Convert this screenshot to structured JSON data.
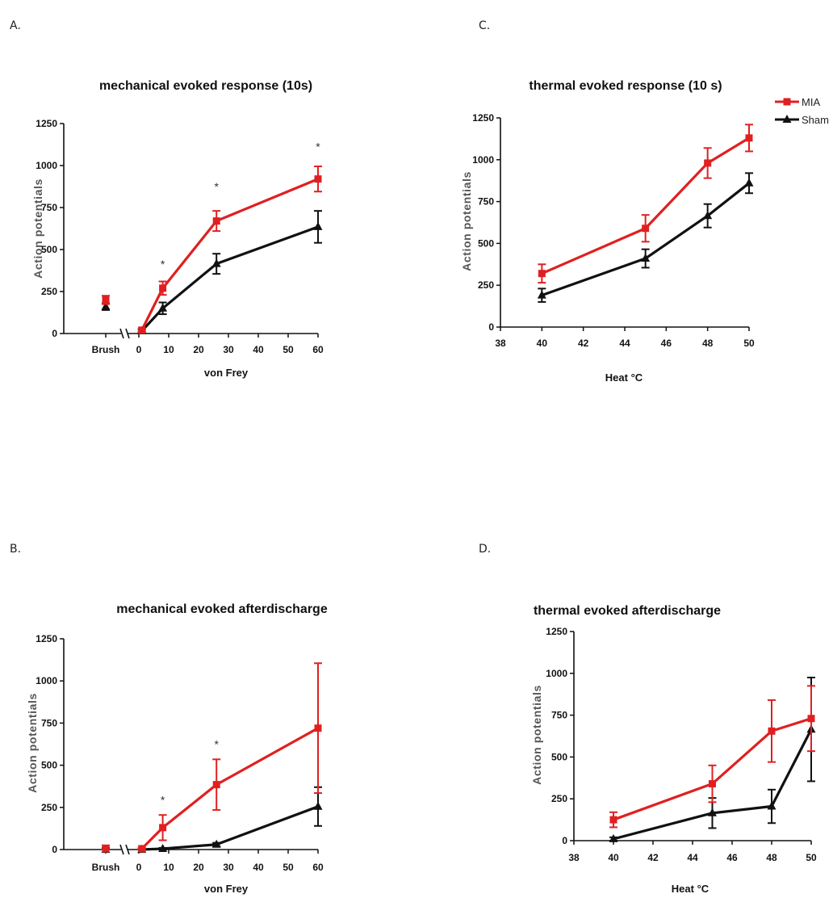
{
  "colors": {
    "MIA": "#e02020",
    "Sham": "#111111"
  },
  "legend": {
    "items": [
      {
        "label": "MIA",
        "series": "MIA"
      },
      {
        "label": "Sham",
        "series": "Sham"
      }
    ]
  },
  "chart_data": [
    {
      "id": "A",
      "panel_label": "A.",
      "type": "line",
      "title": "mechanical evoked response (10s)",
      "ylabel": "Action potentials",
      "xlabel": "von Frey",
      "ylim": [
        0,
        1250
      ],
      "yticks": [
        0,
        250,
        500,
        750,
        1000,
        1250
      ],
      "xlim": [
        0,
        60
      ],
      "xticks": [
        0,
        10,
        20,
        30,
        40,
        50,
        60
      ],
      "category_label": "Brush",
      "series": [
        {
          "name": "MIA",
          "marker": "square",
          "brush": 200,
          "brush_err": 25,
          "x": [
            1,
            8,
            26,
            60
          ],
          "y": [
            20,
            270,
            670,
            920
          ],
          "err": [
            10,
            40,
            60,
            75
          ]
        },
        {
          "name": "Sham",
          "marker": "triangle",
          "brush": 160,
          "brush_err": 20,
          "x": [
            1,
            8,
            26,
            60
          ],
          "y": [
            15,
            150,
            415,
            635
          ],
          "err": [
            8,
            35,
            60,
            95
          ]
        }
      ],
      "annotations": [
        {
          "x": 8,
          "y": 390,
          "text": "*"
        },
        {
          "x": 26,
          "y": 850,
          "text": "*"
        },
        {
          "x": 60,
          "y": 1090,
          "text": "*"
        }
      ]
    },
    {
      "id": "C",
      "panel_label": "C.",
      "type": "line",
      "title": "thermal evoked response (10 s)",
      "ylabel": "Action potentials",
      "xlabel": "Heat °C",
      "ylim": [
        0,
        1250
      ],
      "yticks": [
        0,
        250,
        500,
        750,
        1000,
        1250
      ],
      "xlim": [
        38,
        50
      ],
      "xticks": [
        38,
        40,
        42,
        44,
        46,
        48,
        50
      ],
      "series": [
        {
          "name": "MIA",
          "marker": "square",
          "x": [
            40,
            45,
            48,
            50
          ],
          "y": [
            320,
            590,
            980,
            1130
          ],
          "err": [
            55,
            80,
            90,
            80
          ]
        },
        {
          "name": "Sham",
          "marker": "triangle",
          "x": [
            40,
            45,
            48,
            50
          ],
          "y": [
            190,
            410,
            665,
            860
          ],
          "err": [
            40,
            55,
            70,
            60
          ]
        }
      ]
    },
    {
      "id": "B",
      "panel_label": "B.",
      "type": "line",
      "title": "mechanical evoked afterdischarge",
      "ylabel": "Action potentials",
      "xlabel": "von Frey",
      "ylim": [
        0,
        1250
      ],
      "yticks": [
        0,
        250,
        500,
        750,
        1000,
        1250
      ],
      "xlim": [
        0,
        60
      ],
      "xticks": [
        0,
        10,
        20,
        30,
        40,
        50,
        60
      ],
      "category_label": "Brush",
      "series": [
        {
          "name": "MIA",
          "marker": "square",
          "brush": 5,
          "brush_err": 20,
          "x": [
            1,
            8,
            26,
            60
          ],
          "y": [
            5,
            130,
            385,
            720
          ],
          "err": [
            5,
            75,
            150,
            385
          ]
        },
        {
          "name": "Sham",
          "marker": "triangle",
          "brush": 0,
          "brush_err": 10,
          "x": [
            1,
            8,
            26,
            60
          ],
          "y": [
            0,
            5,
            30,
            255
          ],
          "err": [
            3,
            5,
            10,
            115
          ]
        }
      ],
      "annotations": [
        {
          "x": 8,
          "y": 270,
          "text": "*"
        },
        {
          "x": 26,
          "y": 600,
          "text": "*"
        }
      ]
    },
    {
      "id": "D",
      "panel_label": "D.",
      "type": "line",
      "title": "thermal evoked afterdischarge",
      "ylabel": "Action potentials",
      "xlabel": "Heat °C",
      "ylim": [
        0,
        1250
      ],
      "yticks": [
        0,
        250,
        500,
        750,
        1000,
        1250
      ],
      "xlim": [
        38,
        50
      ],
      "xticks": [
        38,
        40,
        42,
        44,
        46,
        48,
        50
      ],
      "series": [
        {
          "name": "MIA",
          "marker": "square",
          "x": [
            40,
            45,
            48,
            50
          ],
          "y": [
            125,
            340,
            655,
            730
          ],
          "err": [
            45,
            110,
            185,
            195
          ]
        },
        {
          "name": "Sham",
          "marker": "triangle",
          "x": [
            40,
            45,
            48,
            50
          ],
          "y": [
            10,
            165,
            205,
            665
          ],
          "err": [
            10,
            90,
            100,
            310
          ]
        }
      ]
    }
  ]
}
